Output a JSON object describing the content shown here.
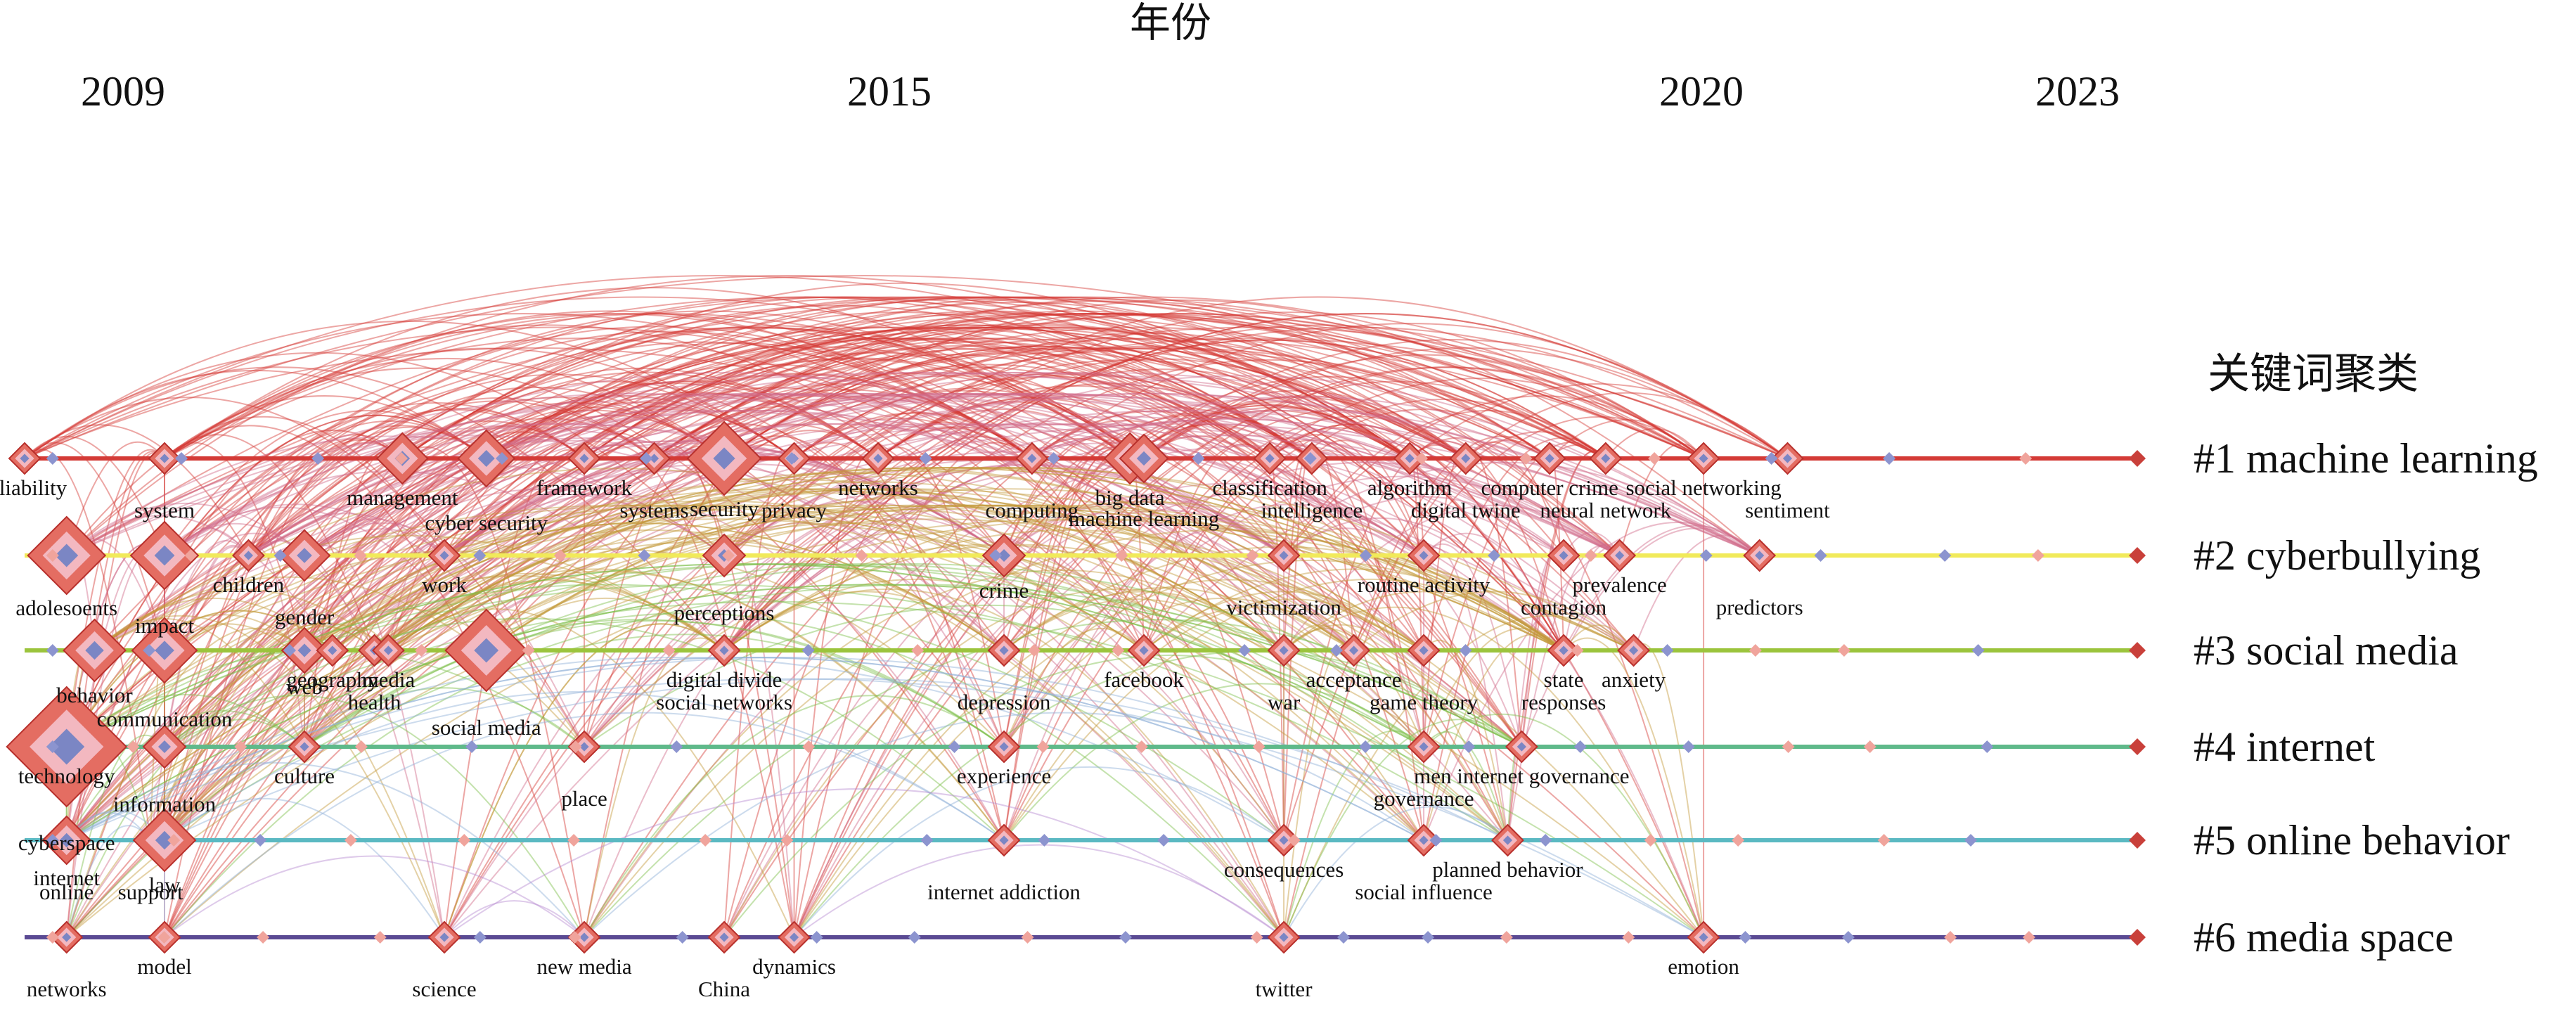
{
  "axis_title": "年份",
  "years": [
    {
      "label": "2009",
      "year": 2009
    },
    {
      "label": "2015",
      "year": 2015
    },
    {
      "label": "2020",
      "year": 2020
    },
    {
      "label": "2023",
      "year": 2023
    }
  ],
  "legend_title": "关键词聚类",
  "colors": {
    "c1": "#d43a36",
    "c2": "#f1ea5a",
    "c3": "#9bc43c",
    "c4": "#5fb98a",
    "c5": "#5ab9c2",
    "c6": "#5a4a93",
    "node_core": "#7b86c4",
    "node_fill": "#e46d62"
  },
  "clusters": [
    {
      "id": 1,
      "label": "#1 machine learning",
      "color": "#d43a36"
    },
    {
      "id": 2,
      "label": "#2 cyberbullying",
      "color": "#f1ea5a"
    },
    {
      "id": 3,
      "label": "#3 social media",
      "color": "#9bc43c"
    },
    {
      "id": 4,
      "label": "#4 internet",
      "color": "#5fb98a"
    },
    {
      "id": 5,
      "label": "#5 online behavior",
      "color": "#5ab9c2"
    },
    {
      "id": 6,
      "label": "#6 media space",
      "color": "#5a4a93"
    }
  ],
  "keywords": [
    {
      "text": "reliability",
      "cluster": 1,
      "year": 2009.0
    },
    {
      "text": "system",
      "cluster": 1,
      "year": 2010.0
    },
    {
      "text": "management",
      "cluster": 1,
      "year": 2011.7
    },
    {
      "text": "cyber security",
      "cluster": 1,
      "year": 2012.3
    },
    {
      "text": "framework",
      "cluster": 1,
      "year": 2013.0
    },
    {
      "text": "systems",
      "cluster": 1,
      "year": 2013.5
    },
    {
      "text": "security",
      "cluster": 1,
      "year": 2014.0
    },
    {
      "text": "privacy",
      "cluster": 1,
      "year": 2014.5
    },
    {
      "text": "networks",
      "cluster": 1,
      "year": 2015.1
    },
    {
      "text": "computing",
      "cluster": 1,
      "year": 2016.2
    },
    {
      "text": "big data",
      "cluster": 1,
      "year": 2016.9
    },
    {
      "text": "machine learning",
      "cluster": 1,
      "year": 2017.0
    },
    {
      "text": "classification",
      "cluster": 1,
      "year": 2017.9
    },
    {
      "text": "intelligence",
      "cluster": 1,
      "year": 2018.2
    },
    {
      "text": "algorithm",
      "cluster": 1,
      "year": 2018.9
    },
    {
      "text": "digital twine",
      "cluster": 1,
      "year": 2019.3
    },
    {
      "text": "computer crime",
      "cluster": 1,
      "year": 2019.9
    },
    {
      "text": "neural network",
      "cluster": 1,
      "year": 2020.3
    },
    {
      "text": "social networking",
      "cluster": 1,
      "year": 2021.0
    },
    {
      "text": "sentiment",
      "cluster": 1,
      "year": 2021.6
    },
    {
      "text": "adolesoents",
      "cluster": 2,
      "year": 2009.3
    },
    {
      "text": "impact",
      "cluster": 2,
      "year": 2010.0
    },
    {
      "text": "children",
      "cluster": 2,
      "year": 2010.6
    },
    {
      "text": "gender",
      "cluster": 2,
      "year": 2011.0
    },
    {
      "text": "work",
      "cluster": 2,
      "year": 2012.0
    },
    {
      "text": "perceptions",
      "cluster": 2,
      "year": 2014.0
    },
    {
      "text": "crime",
      "cluster": 2,
      "year": 2016.0
    },
    {
      "text": "victimization",
      "cluster": 2,
      "year": 2018.0
    },
    {
      "text": "routine activity",
      "cluster": 2,
      "year": 2019.0
    },
    {
      "text": "contagion",
      "cluster": 2,
      "year": 2020.0
    },
    {
      "text": "prevalence",
      "cluster": 2,
      "year": 2020.4
    },
    {
      "text": "predictors",
      "cluster": 2,
      "year": 2021.4
    },
    {
      "text": "behavior",
      "cluster": 3,
      "year": 2009.5
    },
    {
      "text": "communication",
      "cluster": 3,
      "year": 2010.0
    },
    {
      "text": "web",
      "cluster": 3,
      "year": 2011.0
    },
    {
      "text": "health",
      "cluster": 3,
      "year": 2011.5
    },
    {
      "text": "media",
      "cluster": 3,
      "year": 2011.6
    },
    {
      "text": "social media",
      "cluster": 3,
      "year": 2012.3
    },
    {
      "text": "geography",
      "cluster": 3,
      "year": 2011.2
    },
    {
      "text": "social networks",
      "cluster": 3,
      "year": 2014.0
    },
    {
      "text": "digital divide",
      "cluster": 3,
      "year": 2014.0
    },
    {
      "text": "depression",
      "cluster": 3,
      "year": 2016.0
    },
    {
      "text": "facebook",
      "cluster": 3,
      "year": 2017.0
    },
    {
      "text": "war",
      "cluster": 3,
      "year": 2018.0
    },
    {
      "text": "acceptance",
      "cluster": 3,
      "year": 2018.5
    },
    {
      "text": "game theory",
      "cluster": 3,
      "year": 2019.0
    },
    {
      "text": "state",
      "cluster": 3,
      "year": 2020.0
    },
    {
      "text": "responses",
      "cluster": 3,
      "year": 2020.0
    },
    {
      "text": "anxiety",
      "cluster": 3,
      "year": 2020.5
    },
    {
      "text": "cyberspace",
      "cluster": 4,
      "year": 2009.3
    },
    {
      "text": "technology",
      "cluster": 4,
      "year": 2009.3
    },
    {
      "text": "information",
      "cluster": 4,
      "year": 2010.0
    },
    {
      "text": "culture",
      "cluster": 4,
      "year": 2011.0
    },
    {
      "text": "place",
      "cluster": 4,
      "year": 2013.0
    },
    {
      "text": "experience",
      "cluster": 4,
      "year": 2016.0
    },
    {
      "text": "governance",
      "cluster": 4,
      "year": 2019.0
    },
    {
      "text": "men internet governance",
      "cluster": 4,
      "year": 2019.7
    },
    {
      "text": "support",
      "cluster": 5,
      "year": 2009.9
    },
    {
      "text": "internet",
      "cluster": 5,
      "year": 2009.3
    },
    {
      "text": "online",
      "cluster": 5,
      "year": 2009.3
    },
    {
      "text": "law",
      "cluster": 5,
      "year": 2010.0
    },
    {
      "text": "internet addiction",
      "cluster": 5,
      "year": 2016.0
    },
    {
      "text": "consequences",
      "cluster": 5,
      "year": 2018.0
    },
    {
      "text": "social influence",
      "cluster": 5,
      "year": 2019.0
    },
    {
      "text": "planned behavior",
      "cluster": 5,
      "year": 2019.6
    },
    {
      "text": "networks",
      "cluster": 6,
      "year": 2009.3
    },
    {
      "text": "model",
      "cluster": 6,
      "year": 2010.0
    },
    {
      "text": "science",
      "cluster": 6,
      "year": 2012.0
    },
    {
      "text": "new media",
      "cluster": 6,
      "year": 2013.0
    },
    {
      "text": "China",
      "cluster": 6,
      "year": 2014.0
    },
    {
      "text": "dynamics",
      "cluster": 6,
      "year": 2014.5
    },
    {
      "text": "twitter",
      "cluster": 6,
      "year": 2018.0
    },
    {
      "text": "emotion",
      "cluster": 6,
      "year": 2021.0
    }
  ]
}
